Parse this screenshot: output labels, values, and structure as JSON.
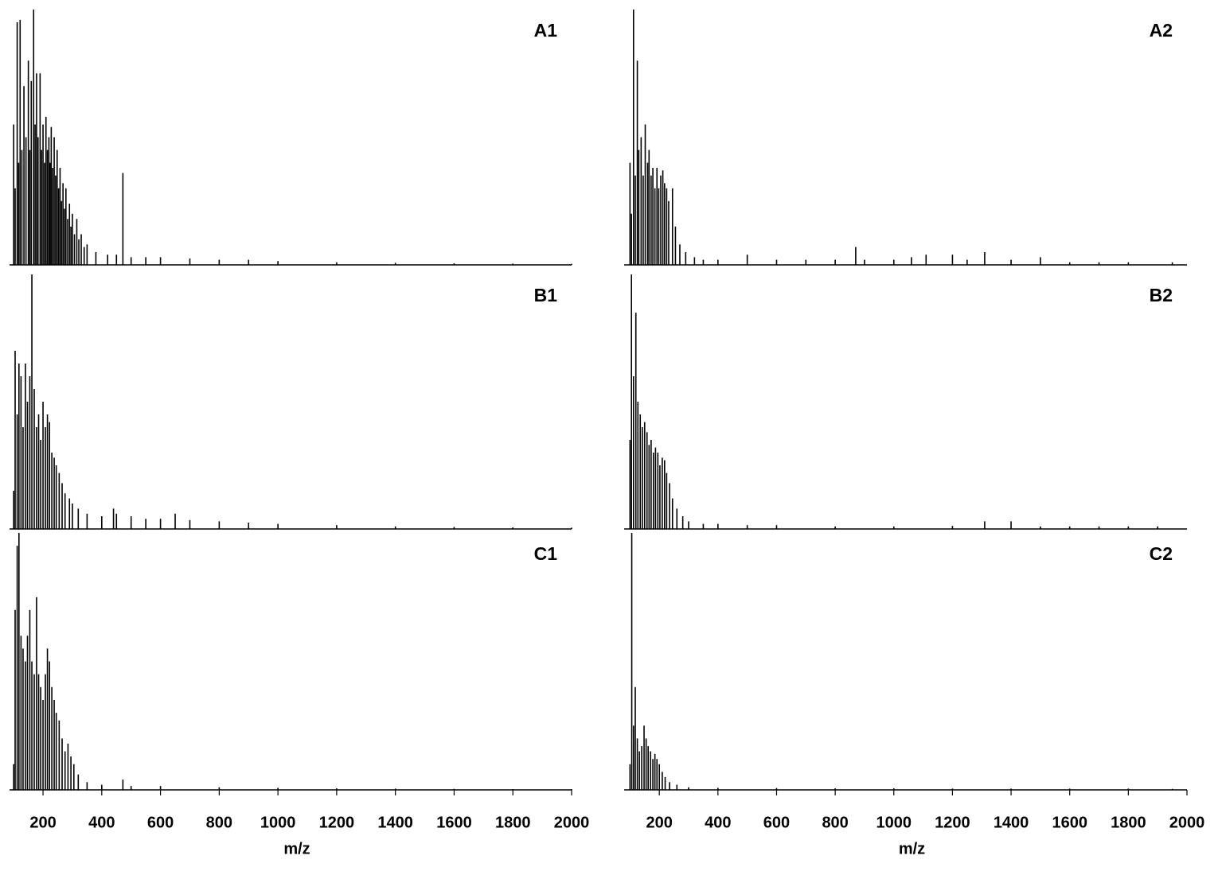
{
  "chart_data": [
    {
      "type": "spectrum",
      "title": "A1",
      "xlim": [
        86,
        2000
      ],
      "ylim": [
        0,
        100
      ],
      "color": "#000000",
      "x": [
        100,
        105,
        112,
        117,
        122,
        128,
        135,
        142,
        150,
        155,
        160,
        168,
        173,
        178,
        183,
        190,
        195,
        200,
        205,
        210,
        215,
        220,
        224,
        228,
        233,
        238,
        243,
        248,
        253,
        258,
        263,
        268,
        273,
        278,
        284,
        290,
        295,
        300,
        307,
        315,
        322,
        330,
        340,
        350,
        380,
        420,
        450,
        472,
        500,
        550,
        600,
        700,
        800,
        900,
        1000,
        1200,
        1400,
        1600,
        1800,
        2000
      ],
      "values": [
        55,
        30,
        95,
        40,
        96,
        45,
        70,
        50,
        80,
        45,
        72,
        100,
        55,
        75,
        50,
        75,
        45,
        55,
        40,
        58,
        45,
        50,
        40,
        54,
        38,
        50,
        35,
        45,
        30,
        38,
        25,
        32,
        22,
        30,
        18,
        24,
        15,
        20,
        12,
        18,
        10,
        12,
        7,
        8,
        5,
        4,
        4,
        36,
        3,
        3,
        3,
        2.5,
        2,
        2,
        1.5,
        1,
        0.8,
        0.6,
        0.5,
        0.4
      ]
    },
    {
      "type": "spectrum",
      "title": "A2",
      "xlim": [
        80,
        2000
      ],
      "ylim": [
        0,
        100
      ],
      "color": "#000000",
      "x": [
        100,
        105,
        112,
        118,
        125,
        130,
        138,
        145,
        152,
        160,
        165,
        172,
        178,
        185,
        192,
        198,
        205,
        212,
        218,
        225,
        232,
        245,
        255,
        270,
        290,
        320,
        350,
        400,
        500,
        600,
        700,
        800,
        870,
        900,
        1000,
        1060,
        1110,
        1200,
        1250,
        1310,
        1400,
        1500,
        1600,
        1700,
        1800,
        1950
      ],
      "values": [
        40,
        20,
        100,
        35,
        80,
        45,
        50,
        35,
        55,
        40,
        45,
        35,
        38,
        30,
        38,
        30,
        35,
        37,
        32,
        30,
        25,
        30,
        15,
        8,
        5,
        3,
        2,
        2,
        4,
        2,
        2,
        2,
        7,
        2,
        2,
        3,
        4,
        4,
        2,
        5,
        2,
        3,
        1,
        1,
        1,
        1
      ]
    },
    {
      "type": "spectrum",
      "title": "B1",
      "xlim": [
        86,
        2000
      ],
      "ylim": [
        0,
        100
      ],
      "color": "#000000",
      "x": [
        100,
        105,
        112,
        118,
        125,
        132,
        140,
        147,
        155,
        162,
        170,
        178,
        185,
        192,
        200,
        208,
        215,
        222,
        230,
        238,
        245,
        255,
        265,
        275,
        290,
        300,
        320,
        350,
        400,
        440,
        450,
        500,
        550,
        600,
        650,
        700,
        800,
        900,
        1000,
        1200,
        1400,
        1600,
        1800,
        2000
      ],
      "values": [
        15,
        70,
        45,
        65,
        60,
        40,
        65,
        50,
        60,
        100,
        55,
        40,
        45,
        35,
        50,
        40,
        45,
        42,
        30,
        28,
        25,
        22,
        18,
        14,
        12,
        10,
        8,
        6,
        5,
        8,
        6,
        5,
        4,
        4,
        6,
        3.5,
        3,
        2.5,
        2,
        1.5,
        1,
        0.8,
        0.6,
        0.5
      ]
    },
    {
      "type": "spectrum",
      "title": "B2",
      "xlim": [
        80,
        2000
      ],
      "ylim": [
        0,
        100
      ],
      "color": "#000000",
      "x": [
        100,
        105,
        112,
        120,
        127,
        135,
        142,
        150,
        158,
        165,
        172,
        180,
        187,
        195,
        202,
        210,
        218,
        225,
        235,
        245,
        260,
        280,
        300,
        350,
        400,
        500,
        600,
        800,
        1000,
        1200,
        1310,
        1400,
        1500,
        1600,
        1700,
        1800,
        1900
      ],
      "values": [
        35,
        100,
        60,
        85,
        50,
        45,
        40,
        42,
        38,
        33,
        35,
        30,
        32,
        30,
        25,
        28,
        27,
        22,
        18,
        12,
        8,
        5,
        3,
        2,
        2,
        1.5,
        1.5,
        1,
        1,
        1.2,
        3,
        3,
        1,
        1,
        1,
        1,
        1
      ]
    },
    {
      "type": "spectrum",
      "title": "C1",
      "xlim": [
        86,
        2000
      ],
      "ylim": [
        0,
        100
      ],
      "color": "#000000",
      "xlabel": "m/z",
      "xticks": [
        200,
        400,
        600,
        800,
        1000,
        1200,
        1400,
        1600,
        1800,
        2000
      ],
      "x": [
        100,
        105,
        112,
        118,
        125,
        132,
        140,
        147,
        155,
        162,
        170,
        178,
        185,
        192,
        200,
        208,
        215,
        222,
        230,
        238,
        245,
        255,
        265,
        275,
        285,
        295,
        305,
        320,
        350,
        400,
        472,
        500,
        600,
        800,
        1000,
        1200,
        1400,
        1600,
        1800,
        2000
      ],
      "values": [
        10,
        70,
        95,
        100,
        60,
        55,
        50,
        60,
        70,
        50,
        45,
        75,
        45,
        40,
        35,
        45,
        55,
        50,
        40,
        35,
        30,
        27,
        20,
        15,
        18,
        13,
        10,
        6,
        3,
        2,
        4,
        1.5,
        1.5,
        1,
        0.8,
        0.6,
        0.5,
        0.4,
        0.3,
        0.3
      ]
    },
    {
      "type": "spectrum",
      "title": "C2",
      "xlim": [
        80,
        2000
      ],
      "ylim": [
        0,
        100
      ],
      "color": "#000000",
      "xlabel": "m/z",
      "xticks": [
        200,
        400,
        600,
        800,
        1000,
        1200,
        1400,
        1600,
        1800,
        2000
      ],
      "x": [
        100,
        106,
        112,
        118,
        125,
        132,
        140,
        148,
        155,
        162,
        170,
        178,
        185,
        192,
        200,
        210,
        220,
        235,
        260,
        300,
        400,
        600,
        800,
        1000,
        1200,
        1400,
        1600,
        1800,
        1950
      ],
      "values": [
        10,
        100,
        25,
        40,
        20,
        15,
        17,
        25,
        20,
        17,
        15,
        12,
        14,
        12,
        10,
        7,
        5,
        3,
        2,
        1,
        0.8,
        0.7,
        0.6,
        0.6,
        0.5,
        0.5,
        0.5,
        0.5,
        0.4
      ]
    }
  ]
}
